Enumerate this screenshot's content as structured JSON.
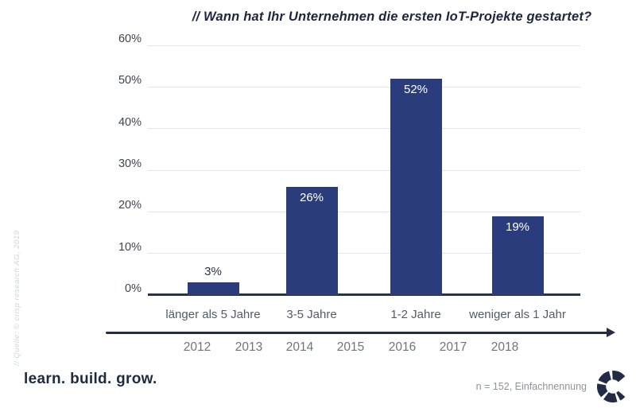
{
  "title": "// Wann hat Ihr Unternehmen die ersten IoT-Projekte gestartet?",
  "source_note": "// Quelle: © crisp research AG, 2019",
  "footer": {
    "tagline": "learn. build. grow.",
    "sample_note": "n = 152, Einfachnennung",
    "logo_name": "crisp-research-c-logo"
  },
  "chart_data": {
    "type": "bar",
    "title": "// Wann hat Ihr Unternehmen die ersten IoT-Projekte gestartet?",
    "categories": [
      "länger als 5 Jahre",
      "3-5 Jahre",
      "1-2 Jahre",
      "weniger als 1 Jahr"
    ],
    "values": [
      3,
      26,
      52,
      19
    ],
    "value_labels": [
      "3%",
      "26%",
      "52%",
      "19%"
    ],
    "xlabel": "",
    "ylabel": "",
    "ylim": [
      0,
      60
    ],
    "ytick_step": 10,
    "ytick_labels": [
      "0%",
      "10%",
      "20%",
      "30%",
      "40%",
      "50%",
      "60%"
    ],
    "grid": true,
    "legend": false,
    "bar_color": "#2a3c7b",
    "timeline_years": [
      "2012",
      "2013",
      "2014",
      "2015",
      "2016",
      "2017",
      "2018"
    ]
  },
  "colors": {
    "bar": "#2a3c7b",
    "title": "#1d2541",
    "axis_baseline": "#2a3447",
    "gridline": "#e4e5e7",
    "arrow": "#242d44",
    "logo": "#232c46",
    "category_label": "#525b68",
    "year_label": "#6f747c",
    "source_note": "#ccd6e0"
  }
}
